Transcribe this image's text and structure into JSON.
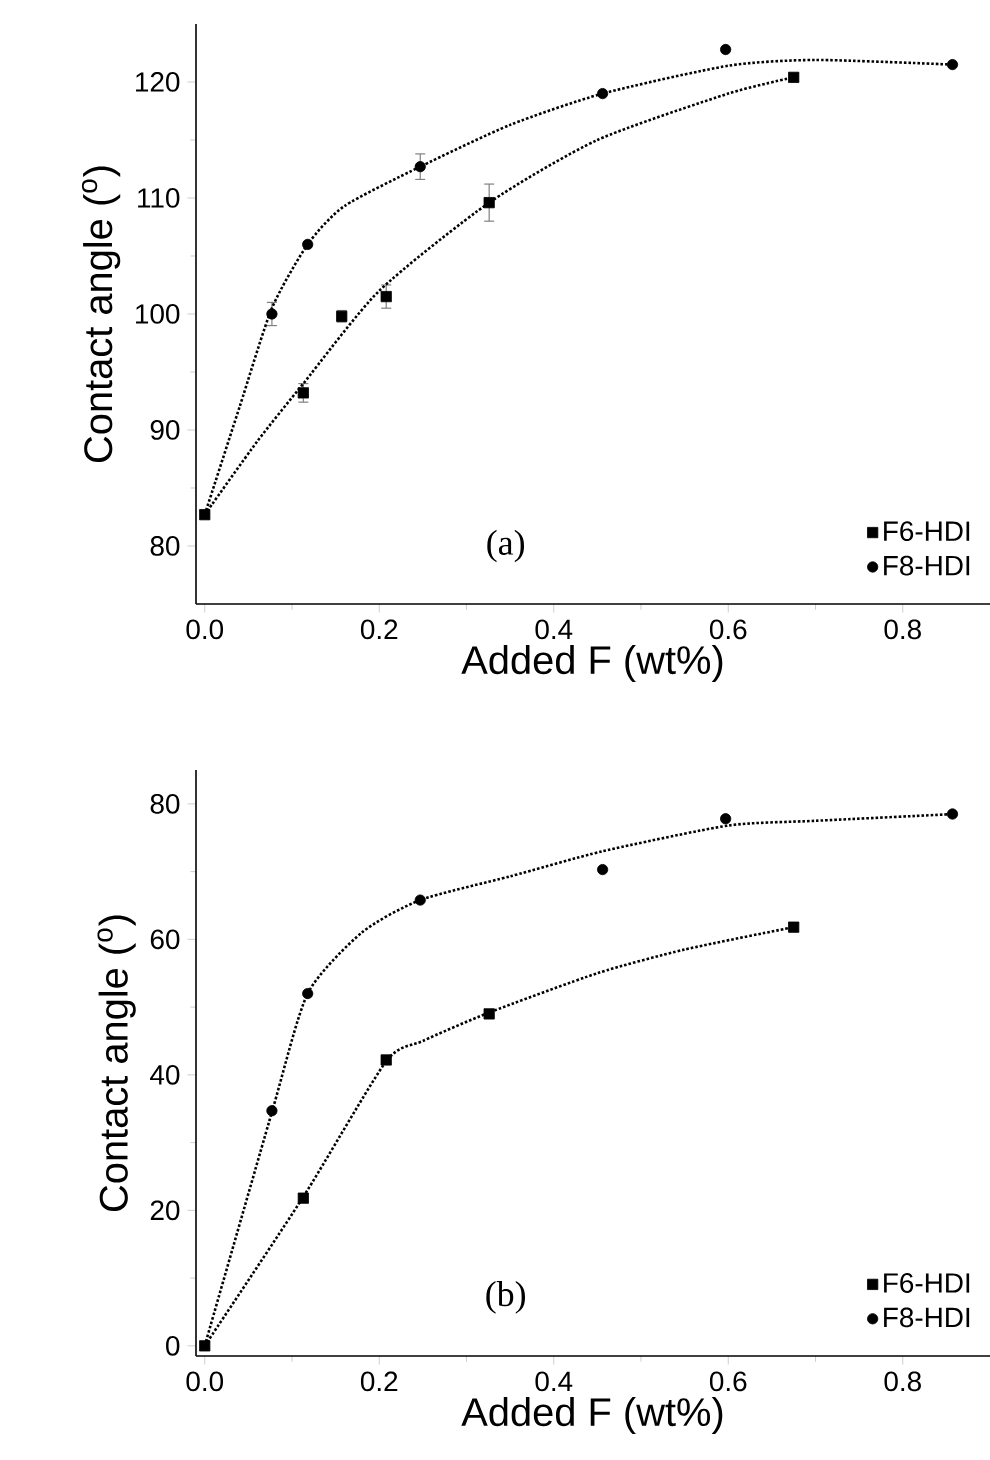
{
  "chart_data": [
    {
      "type": "scatter",
      "xlabel": "Added F (wt%)",
      "ylabel": "Contact angle ($^{o}$)",
      "annotations": [
        "(a)"
      ],
      "legend": "bottom right",
      "xlim": [
        -0.01,
        0.9
      ],
      "xticks": [
        {
          "value": 0,
          "label": "0.0"
        },
        {
          "value": 0.2,
          "label": "0.2"
        },
        {
          "value": 0.4,
          "label": "0.4"
        },
        {
          "value": 0.6,
          "label": "0.6"
        },
        {
          "value": 0.8,
          "label": "0.8"
        }
      ],
      "ylim": [
        75,
        125
      ],
      "yticks": [
        80,
        90,
        100,
        110,
        120
      ],
      "series": [
        {
          "name": "F6-HDI",
          "color": "#000000",
          "marker": "square",
          "x": [
            0,
            0.113,
            0.157,
            0.208,
            0.326,
            0.675
          ],
          "values": [
            82.7,
            93.2,
            99.8,
            101.5,
            109.6,
            120.4
          ],
          "errors": [
            null,
            0.8,
            0.5,
            1.0,
            1.6,
            null
          ]
        },
        {
          "name": "F8-HDI",
          "color": "#000000",
          "marker": "circle",
          "x": [
            0.077,
            0.118,
            0.247,
            0.456,
            0.597,
            0.857
          ],
          "values": [
            100,
            106,
            112.7,
            119,
            122.8,
            121.5
          ],
          "errors": [
            1.0,
            null,
            1.1,
            null,
            null,
            null
          ]
        },
        {
          "type": "line",
          "color": "#000000",
          "marker": "none",
          "line_style": "dotted",
          "x": [
            0,
            0.06,
            0.113,
            0.2,
            0.326,
            0.45,
            0.6,
            0.675
          ],
          "values": [
            82.7,
            89,
            94,
            102,
            109.6,
            115,
            119,
            120.4
          ]
        },
        {
          "type": "line",
          "color": "#000000",
          "marker": "none",
          "line_style": "dotted",
          "x": [
            0,
            0.04,
            0.077,
            0.118,
            0.16,
            0.247,
            0.35,
            0.456,
            0.6,
            0.7,
            0.857
          ],
          "values": [
            82.7,
            92,
            100.5,
            106,
            109.3,
            112.7,
            116.3,
            119,
            121.4,
            121.9,
            121.5
          ]
        }
      ]
    },
    {
      "type": "scatter",
      "xlabel": "Added F (wt%)",
      "ylabel": "Contact angle ($^{o}$)",
      "annotations": [
        "(b)"
      ],
      "legend": "bottom right",
      "xlim": [
        -0.01,
        0.9
      ],
      "xticks": [
        {
          "value": 0,
          "label": "0.0"
        },
        {
          "value": 0.2,
          "label": "0.2"
        },
        {
          "value": 0.4,
          "label": "0.4"
        },
        {
          "value": 0.6,
          "label": "0.6"
        },
        {
          "value": 0.8,
          "label": "0.8"
        }
      ],
      "ylim": [
        -1.5,
        85
      ],
      "yticks": [
        0,
        20,
        40,
        60,
        80
      ],
      "series": [
        {
          "name": "F6-HDI",
          "color": "#000000",
          "marker": "square",
          "x": [
            0,
            0.113,
            0.208,
            0.326,
            0.675
          ],
          "values": [
            0,
            21.8,
            42.2,
            49,
            61.8
          ]
        },
        {
          "name": "F8-HDI",
          "color": "#000000",
          "marker": "circle",
          "x": [
            0.077,
            0.118,
            0.247,
            0.456,
            0.597,
            0.857
          ],
          "values": [
            34.7,
            52,
            65.8,
            70.3,
            77.8,
            78.5
          ]
        },
        {
          "type": "line",
          "color": "#000000",
          "marker": "none",
          "line_style": "dotted",
          "x": [
            0,
            0.113,
            0.208,
            0.25,
            0.326,
            0.45,
            0.55,
            0.675
          ],
          "values": [
            0,
            22,
            42,
            45,
            49.2,
            55,
            58.5,
            61.8
          ]
        },
        {
          "type": "line",
          "color": "#000000",
          "marker": "none",
          "line_style": "dotted",
          "x": [
            0,
            0.077,
            0.118,
            0.18,
            0.247,
            0.35,
            0.456,
            0.6,
            0.7,
            0.86
          ],
          "values": [
            0,
            34.5,
            52,
            61,
            65.8,
            69.3,
            73,
            76.8,
            77.5,
            78.5
          ]
        }
      ]
    }
  ]
}
